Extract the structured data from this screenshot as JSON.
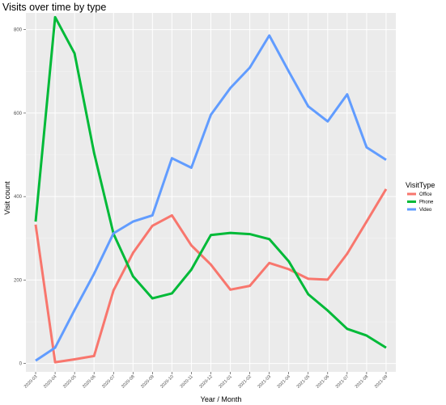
{
  "chart_data": {
    "type": "line",
    "title": "Visits over time by type",
    "xlabel": "Year / Month",
    "ylabel": "Visit count",
    "ylim": [
      -20,
      840
    ],
    "yticks": [
      0,
      200,
      400,
      600,
      800
    ],
    "categories": [
      "2020-03",
      "2020-04",
      "2020-05",
      "2020-06",
      "2020-07",
      "2020-08",
      "2020-09",
      "2020-10",
      "2020-11",
      "2020-12",
      "2021-01",
      "2021-02",
      "2021-03",
      "2021-04",
      "2021-05",
      "2021-06",
      "2021-07",
      "2021-08",
      "2021-09"
    ],
    "legend_title": "VisitType",
    "legend_position": "right",
    "grid": true,
    "series": [
      {
        "name": "Office",
        "color": "#F8766D",
        "values": [
          333,
          3,
          10,
          18,
          175,
          265,
          330,
          355,
          283,
          237,
          177,
          186,
          241,
          226,
          203,
          201,
          263,
          340,
          418
        ]
      },
      {
        "name": "Phone",
        "color": "#00BA38",
        "values": [
          340,
          830,
          743,
          505,
          311,
          209,
          156,
          168,
          225,
          308,
          313,
          310,
          298,
          245,
          166,
          127,
          83,
          67,
          38
        ]
      },
      {
        "name": "Video",
        "color": "#619CFF",
        "values": [
          7,
          38,
          128,
          215,
          312,
          340,
          355,
          492,
          469,
          596,
          660,
          709,
          786,
          700,
          616,
          580,
          645,
          518,
          488
        ]
      }
    ]
  }
}
